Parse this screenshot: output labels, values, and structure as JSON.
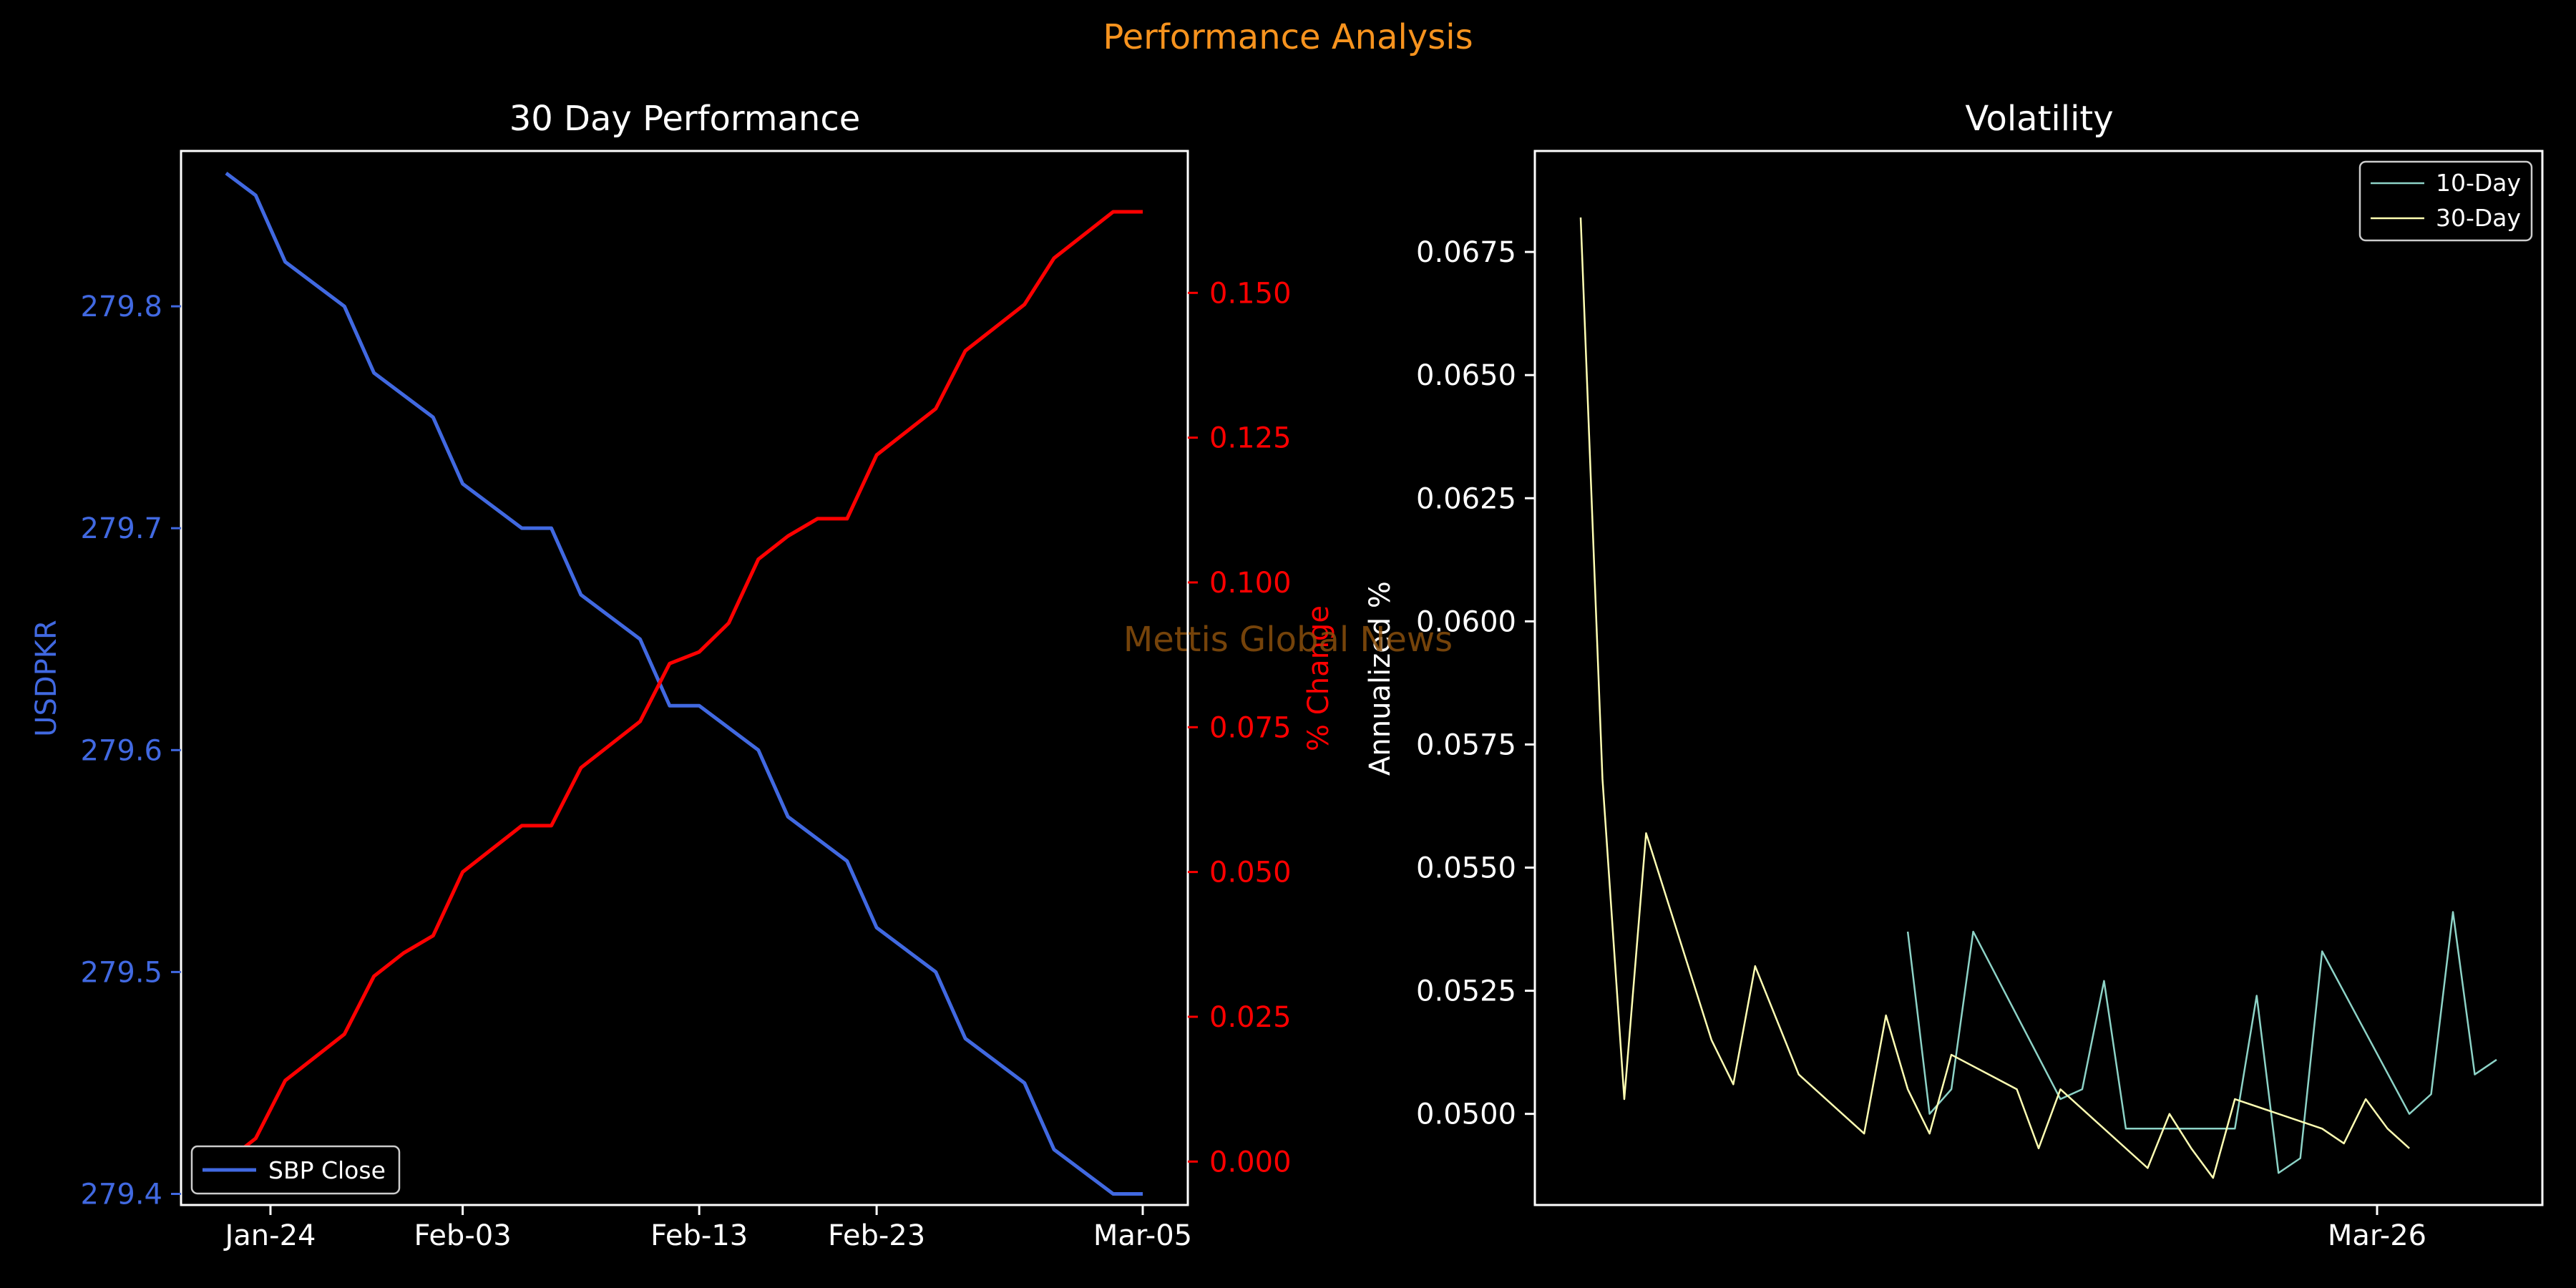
{
  "figure": {
    "suptitle": "Performance Analysis",
    "watermark": "Mettis Global News",
    "colors": {
      "background": "#000000",
      "suptitle": "#f7931e",
      "watermark": "#8a4f0c",
      "axes": "#ffffff",
      "primary": "#4169e1",
      "secondary": "#ff0000",
      "vol10": "#8dd3c7",
      "vol30": "#ffffb3"
    }
  },
  "chart_data": [
    {
      "type": "line",
      "title": "30 Day Performance",
      "xlabel": "",
      "ylabel": "USDPKR",
      "y2label": "% Change",
      "x_ticks": [
        "Jan-24",
        "Feb-03",
        "Feb-13",
        "Feb-23",
        "Mar-05"
      ],
      "x": [
        "Jan-22",
        "Jan-25",
        "Jan-26",
        "Jan-27",
        "Jan-28",
        "Jan-29",
        "Feb-01",
        "Feb-02",
        "Feb-03",
        "Feb-04",
        "Feb-05",
        "Feb-08",
        "Feb-09",
        "Feb-10",
        "Feb-11",
        "Feb-12",
        "Feb-13",
        "Feb-16",
        "Feb-17",
        "Feb-18",
        "Feb-19",
        "Feb-22",
        "Feb-23",
        "Feb-24",
        "Feb-25",
        "Feb-26",
        "Mar-01",
        "Mar-02",
        "Mar-03",
        "Mar-04",
        "Mar-05",
        "Mar-06"
      ],
      "ylim": [
        279.395,
        279.87
      ],
      "y_ticks": [
        279.4,
        279.5,
        279.6,
        279.7,
        279.8
      ],
      "y2lim": [
        -0.0075,
        0.1745
      ],
      "y2_ticks": [
        "0.000",
        "0.025",
        "0.050",
        "0.075",
        "0.100",
        "0.125",
        "0.150"
      ],
      "series": [
        {
          "name": "SBP Close",
          "axis": "left",
          "values": [
            279.86,
            279.85,
            279.82,
            279.81,
            279.8,
            279.77,
            279.76,
            279.75,
            279.72,
            279.71,
            279.7,
            279.7,
            279.67,
            279.66,
            279.65,
            279.62,
            279.62,
            279.61,
            279.6,
            279.57,
            279.56,
            279.55,
            279.52,
            279.51,
            279.5,
            279.47,
            279.46,
            279.45,
            279.42,
            279.41,
            279.4,
            279.4
          ]
        },
        {
          "axis": "right",
          "values": [
            0.0,
            0.004,
            0.014,
            0.018,
            0.022,
            0.032,
            0.036,
            0.039,
            0.05,
            0.054,
            0.058,
            0.058,
            0.068,
            0.072,
            0.076,
            0.086,
            0.088,
            0.093,
            0.104,
            0.108,
            0.111,
            0.111,
            0.122,
            0.126,
            0.13,
            0.14,
            0.144,
            0.148,
            0.156,
            0.16,
            0.164,
            0.164
          ]
        }
      ],
      "legend": "lower-left"
    },
    {
      "type": "line",
      "title": "Volatility",
      "xlabel": "",
      "ylabel": "Annualized %",
      "x_ticks": [
        "Mar-26"
      ],
      "ylim": [
        0.04815,
        0.06955
      ],
      "y_ticks": [
        "0.0500",
        "0.0525",
        "0.0550",
        "0.0575",
        "0.0600",
        "0.0625",
        "0.0650",
        "0.0675"
      ],
      "series": [
        {
          "name": "10-Day",
          "values": [
            null,
            null,
            null,
            null,
            null,
            null,
            null,
            null,
            null,
            null,
            null,
            null,
            null,
            null,
            null,
            0.0537,
            0.05,
            0.0505,
            0.0537,
            null,
            null,
            null,
            0.0503,
            0.0505,
            0.0527,
            0.0497,
            null,
            null,
            null,
            null,
            0.0497,
            0.0524,
            0.0488,
            0.0491,
            0.0533,
            null,
            null,
            null,
            0.05,
            0.0504,
            0.0541,
            0.0508,
            0.0511
          ]
        },
        {
          "name": "30-Day",
          "values": [
            0.0682,
            0.0568,
            0.0503,
            0.0557,
            null,
            null,
            0.0515,
            0.0506,
            0.053,
            null,
            0.0508,
            null,
            null,
            0.0496,
            0.052,
            0.0505,
            0.0496,
            0.0512,
            null,
            null,
            0.0505,
            0.0493,
            0.0505,
            null,
            null,
            null,
            0.0489,
            0.05,
            0.0493,
            0.0487,
            0.0503,
            null,
            null,
            null,
            0.0497,
            0.0494,
            0.0503,
            0.0497,
            0.0493
          ]
        }
      ],
      "legend": "upper-right"
    }
  ]
}
